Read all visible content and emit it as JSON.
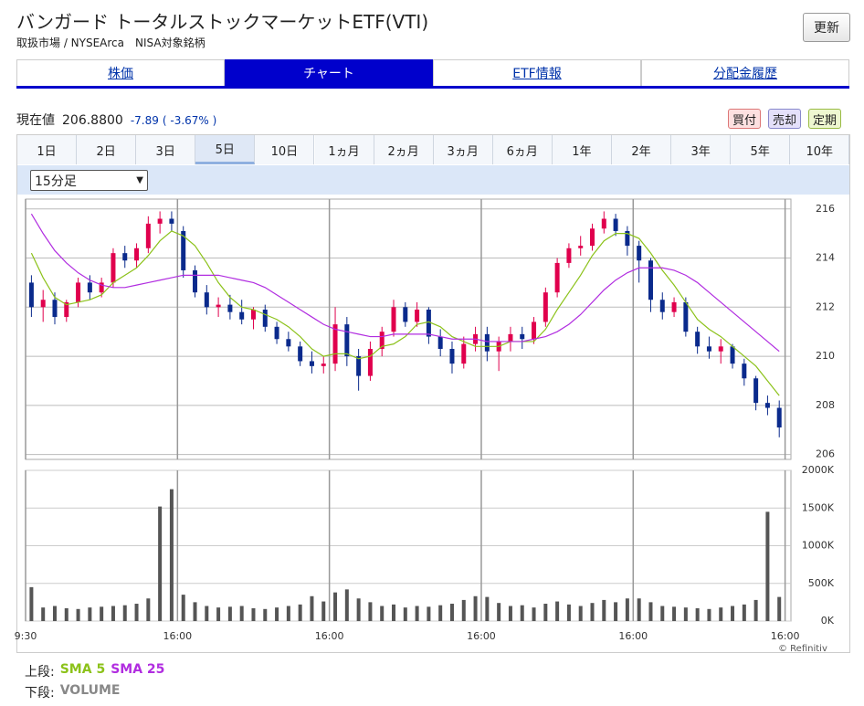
{
  "header": {
    "title": "バンガード トータルストックマーケットETF(VTI)",
    "subtitle": "取扱市場 / NYSEArca　NISA対象銘柄",
    "refresh_button": "更新"
  },
  "tabs": [
    "株価",
    "チャート",
    "ETF情報",
    "分配金履歴"
  ],
  "active_tab": 1,
  "quote": {
    "label": "現在値",
    "price": "206.8800",
    "change": "-7.89",
    "change_pct": "( -3.67% )"
  },
  "actions": [
    "買付",
    "売却",
    "定期"
  ],
  "periods": [
    "1日",
    "2日",
    "3日",
    "5日",
    "10日",
    "1ヵ月",
    "2ヵ月",
    "3ヵ月",
    "6ヵ月",
    "1年",
    "2年",
    "3年",
    "5年",
    "10年"
  ],
  "active_period": 3,
  "interval": "15分足",
  "legend": {
    "upper": "上段:",
    "lower": "下段:"
  },
  "credit": "© Refinitiv",
  "chart_data": [
    {
      "type": "candlestick",
      "xlim": [
        -0.5,
        65
      ],
      "ylim": [
        205.8,
        216.4
      ],
      "yticks": [
        206,
        208,
        210,
        212,
        214,
        216
      ],
      "grid": true,
      "up_color": "#e0004d",
      "down_color": "#0a2a8c",
      "candles": [
        [
          213.0,
          213.3,
          211.6,
          212.0
        ],
        [
          212.0,
          212.7,
          211.4,
          212.3
        ],
        [
          212.3,
          212.6,
          211.3,
          211.6
        ],
        [
          211.6,
          212.3,
          211.4,
          212.2
        ],
        [
          212.2,
          213.2,
          212.0,
          213.0
        ],
        [
          213.0,
          213.3,
          212.3,
          212.6
        ],
        [
          212.6,
          213.2,
          212.4,
          213.0
        ],
        [
          213.0,
          214.4,
          212.8,
          214.2
        ],
        [
          214.2,
          214.5,
          213.6,
          213.9
        ],
        [
          213.9,
          214.6,
          213.6,
          214.4
        ],
        [
          214.4,
          215.7,
          214.2,
          215.4
        ],
        [
          215.4,
          215.9,
          215.0,
          215.6
        ],
        [
          215.6,
          215.9,
          215.1,
          215.4
        ],
        [
          215.1,
          215.3,
          213.2,
          213.5
        ],
        [
          213.5,
          213.7,
          212.4,
          212.6
        ],
        [
          212.6,
          212.9,
          211.7,
          212.0
        ],
        [
          212.0,
          212.4,
          211.6,
          212.1
        ],
        [
          212.1,
          212.5,
          211.5,
          211.8
        ],
        [
          211.8,
          212.3,
          211.3,
          211.5
        ],
        [
          211.5,
          212.0,
          211.1,
          211.9
        ],
        [
          211.9,
          212.1,
          211.0,
          211.2
        ],
        [
          211.2,
          211.4,
          210.5,
          210.7
        ],
        [
          210.7,
          211.0,
          210.2,
          210.4
        ],
        [
          210.4,
          210.6,
          209.6,
          209.8
        ],
        [
          209.8,
          210.2,
          209.3,
          209.6
        ],
        [
          209.6,
          210.0,
          209.3,
          209.7
        ],
        [
          209.7,
          212.0,
          209.4,
          211.3
        ],
        [
          211.3,
          211.6,
          209.6,
          210.0
        ],
        [
          210.0,
          210.3,
          208.6,
          209.2
        ],
        [
          209.2,
          210.6,
          209.0,
          210.3
        ],
        [
          210.3,
          211.2,
          210.0,
          211.0
        ],
        [
          211.0,
          212.3,
          210.8,
          212.0
        ],
        [
          212.0,
          212.2,
          211.2,
          211.4
        ],
        [
          211.4,
          212.2,
          211.2,
          211.9
        ],
        [
          211.9,
          212.0,
          210.5,
          210.8
        ],
        [
          210.8,
          211.1,
          210.0,
          210.3
        ],
        [
          210.3,
          210.6,
          209.3,
          209.7
        ],
        [
          209.7,
          210.8,
          209.5,
          210.5
        ],
        [
          210.5,
          211.2,
          210.2,
          210.9
        ],
        [
          210.9,
          211.2,
          209.8,
          210.2
        ],
        [
          210.2,
          210.8,
          209.4,
          210.6
        ],
        [
          210.6,
          211.2,
          210.2,
          210.9
        ],
        [
          210.9,
          211.2,
          210.3,
          210.7
        ],
        [
          210.7,
          211.6,
          210.5,
          211.4
        ],
        [
          211.4,
          212.8,
          211.2,
          212.6
        ],
        [
          212.6,
          214.0,
          212.4,
          213.8
        ],
        [
          213.8,
          214.6,
          213.6,
          214.4
        ],
        [
          214.4,
          214.9,
          214.1,
          214.5
        ],
        [
          214.5,
          215.4,
          214.3,
          215.2
        ],
        [
          215.2,
          215.9,
          215.0,
          215.6
        ],
        [
          215.6,
          215.8,
          214.9,
          215.1
        ],
        [
          215.1,
          215.3,
          214.1,
          214.5
        ],
        [
          214.5,
          214.7,
          213.0,
          213.9
        ],
        [
          213.9,
          214.0,
          211.8,
          212.3
        ],
        [
          212.3,
          212.6,
          211.5,
          211.8
        ],
        [
          211.8,
          212.4,
          211.6,
          212.2
        ],
        [
          212.2,
          212.4,
          210.8,
          211.0
        ],
        [
          211.0,
          211.2,
          210.1,
          210.4
        ],
        [
          210.4,
          210.8,
          209.9,
          210.2
        ],
        [
          210.2,
          210.7,
          209.7,
          210.4
        ],
        [
          210.4,
          210.5,
          209.5,
          209.7
        ],
        [
          209.7,
          209.9,
          208.8,
          209.1
        ],
        [
          209.1,
          209.2,
          207.8,
          208.1
        ],
        [
          208.1,
          208.4,
          207.6,
          207.9
        ],
        [
          207.9,
          208.2,
          206.7,
          207.1
        ]
      ],
      "series": [
        {
          "name": "SMA 5",
          "color": "#8cc21a",
          "values": [
            214.2,
            213.2,
            212.4,
            212.1,
            212.2,
            212.3,
            212.5,
            213.0,
            213.3,
            213.6,
            214.1,
            214.7,
            215.1,
            214.9,
            214.5,
            213.8,
            213.0,
            212.4,
            212.0,
            211.9,
            211.7,
            211.5,
            211.2,
            210.8,
            210.3,
            210.0,
            210.1,
            210.1,
            209.9,
            210.0,
            210.4,
            210.5,
            210.8,
            211.3,
            211.4,
            211.2,
            210.8,
            210.6,
            210.4,
            210.4,
            210.4,
            210.6,
            210.6,
            210.6,
            211.1,
            211.9,
            212.6,
            213.3,
            214.1,
            214.7,
            215.0,
            215.0,
            214.8,
            214.2,
            213.5,
            212.9,
            212.2,
            211.5,
            211.1,
            210.8,
            210.4,
            210.0,
            209.6,
            209.0,
            208.4
          ]
        },
        {
          "name": "SMA 25",
          "color": "#b12de0",
          "values": [
            215.8,
            215.0,
            214.3,
            213.8,
            213.4,
            213.1,
            212.9,
            212.8,
            212.8,
            212.9,
            213.0,
            213.1,
            213.2,
            213.3,
            213.3,
            213.3,
            213.3,
            213.2,
            213.1,
            213.0,
            212.8,
            212.5,
            212.2,
            211.9,
            211.6,
            211.3,
            211.1,
            211.0,
            210.9,
            210.8,
            210.8,
            210.9,
            210.9,
            210.9,
            210.9,
            210.8,
            210.7,
            210.7,
            210.7,
            210.6,
            210.6,
            210.6,
            210.6,
            210.7,
            210.8,
            211.0,
            211.3,
            211.7,
            212.2,
            212.7,
            213.1,
            213.4,
            213.6,
            213.6,
            213.6,
            213.5,
            213.3,
            213.0,
            212.6,
            212.2,
            211.8,
            211.4,
            211.0,
            210.6,
            210.2
          ]
        }
      ]
    },
    {
      "type": "bar",
      "name": "VOLUME",
      "color": "#555555",
      "xlim": [
        -0.5,
        65
      ],
      "ylim": [
        0,
        2000
      ],
      "yticks": [
        {
          "value": 0,
          "label": "0K"
        },
        {
          "value": 500,
          "label": "500K"
        },
        {
          "value": 1000,
          "label": "1000K"
        },
        {
          "value": 1500,
          "label": "1500K"
        },
        {
          "value": 2000,
          "label": "2000K"
        }
      ],
      "xticks": [
        {
          "value": -0.5,
          "label": "9:30"
        },
        {
          "value": 12.5,
          "label": "16:00"
        },
        {
          "value": 25.5,
          "label": "16:00"
        },
        {
          "value": 38.5,
          "label": "16:00"
        },
        {
          "value": 51.5,
          "label": "16:00"
        },
        {
          "value": 64.5,
          "label": "16:00"
        }
      ],
      "values": [
        450,
        180,
        200,
        170,
        160,
        180,
        190,
        200,
        210,
        230,
        300,
        1520,
        1750,
        350,
        250,
        200,
        180,
        190,
        200,
        170,
        160,
        180,
        200,
        220,
        330,
        260,
        380,
        420,
        300,
        250,
        200,
        220,
        180,
        200,
        190,
        210,
        230,
        280,
        330,
        320,
        240,
        200,
        210,
        180,
        230,
        260,
        220,
        200,
        240,
        280,
        250,
        300,
        300,
        250,
        200,
        190,
        180,
        170,
        160,
        180,
        200,
        220,
        280,
        1450,
        320
      ]
    }
  ]
}
